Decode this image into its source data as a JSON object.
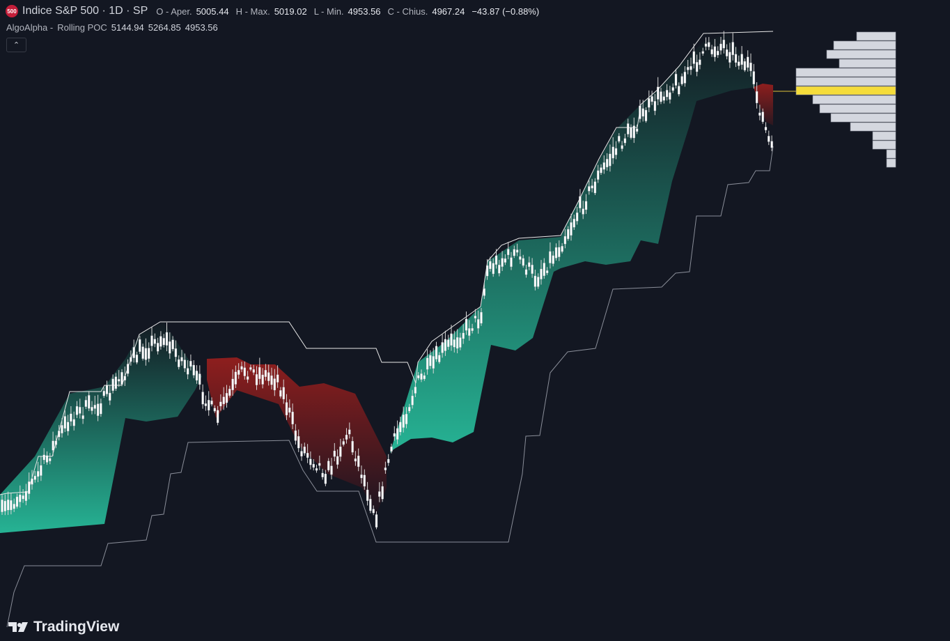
{
  "header": {
    "icon": "500",
    "symbol": "Indice S&P 500 · 1D · SP",
    "ohlc": [
      {
        "label": "O - Aper.",
        "value": "5005.44"
      },
      {
        "label": "H - Max.",
        "value": "5019.02"
      },
      {
        "label": "L - Min.",
        "value": "4953.56"
      },
      {
        "label": "C - Chius.",
        "value": "4967.24"
      }
    ],
    "change": "−43.87 (−0.88%)"
  },
  "indicator": {
    "author": "AlgoAlpha -",
    "title": "Rolling POC",
    "values": [
      "5144.94",
      "5264.85",
      "4953.56"
    ]
  },
  "logo": "TradingView"
}
